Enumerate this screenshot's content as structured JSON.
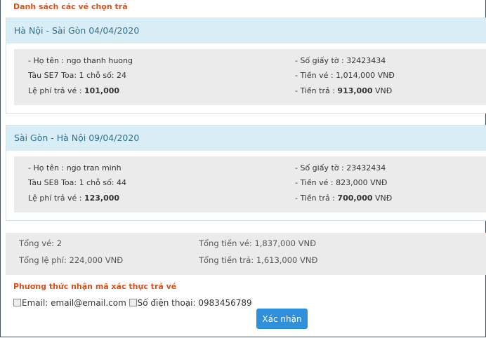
{
  "title": "Danh sách các vé chọn trả",
  "tickets": [
    {
      "header": "Hà Nội - Sài Gòn 04/04/2020",
      "name": "- Họ tên : ngo thanh huong",
      "train": "Tàu SE7 Toa: 1 chỗ số: 24",
      "fee_label": "Lệ phí trả vé : ",
      "fee": "101,000",
      "id": "- Số giấy tờ : 32423434",
      "price": "- Tiền vé : 1,014,000 VNĐ",
      "refund_label": "- Tiền trả : ",
      "refund": "913,000",
      "refund_unit": " VNĐ"
    },
    {
      "header": "Sài Gòn - Hà Nội 09/04/2020",
      "name": "- Họ tên : ngo tran minh",
      "train": "Tàu SE8 Toa: 1 chỗ số: 44",
      "fee_label": "Lệ phí trả vé : ",
      "fee": "123,000",
      "id": "- Số giấy tờ : 23432434",
      "price": "- Tiền vé : 823,000 VNĐ",
      "refund_label": "- Tiền trả : ",
      "refund": "700,000",
      "refund_unit": " VNĐ"
    }
  ],
  "totals": {
    "count": "Tổng vé: 2",
    "total_price": "Tổng tiền vé: 1,837,000 VNĐ",
    "total_fee": "Tổng lệ phí: 224,000 VNĐ",
    "total_refund": "Tổng tiền trả: 1,613,000 VNĐ"
  },
  "verify": {
    "heading": "Phương thức nhận mã xác thực trả vé",
    "email": "Email: email@email.com",
    "phone": "Số điện thoại: 0983456789",
    "confirm": "Xác nhận"
  }
}
